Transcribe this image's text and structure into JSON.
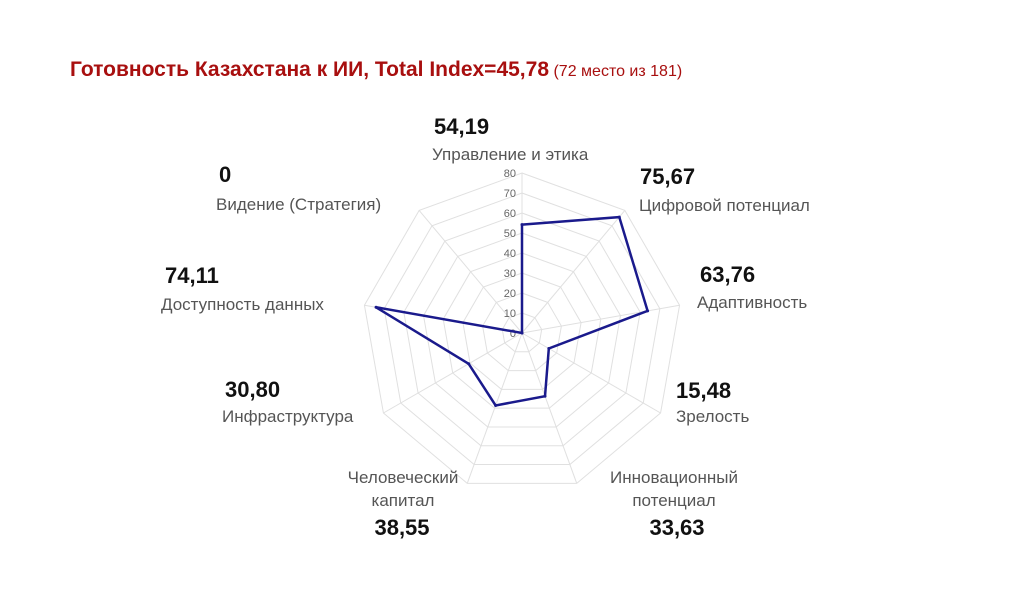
{
  "title": {
    "main": "Готовность Казахстана к ИИ, Total Index=45,78",
    "rank": "(72 место из 181)"
  },
  "colors": {
    "title": "#a80f0f",
    "series": "#1a1a8c",
    "grid": "#e0e0e0"
  },
  "chart_data": {
    "type": "radar",
    "rlim": [
      0,
      80
    ],
    "ticks": [
      0,
      10,
      20,
      30,
      40,
      50,
      60,
      70,
      80
    ],
    "grid": true,
    "categories": [
      {
        "label": "Управление и этика",
        "value_text": "54,19"
      },
      {
        "label": "Цифровой потенциал",
        "value_text": "75,67"
      },
      {
        "label": "Адаптивность",
        "value_text": "63,76"
      },
      {
        "label": "Зрелость",
        "value_text": "15,48"
      },
      {
        "label": "Инновационный потенциал",
        "value_text": "33,63"
      },
      {
        "label": "Человеческий капитал",
        "value_text": "38,55"
      },
      {
        "label": "Инфраструктура",
        "value_text": "30,80"
      },
      {
        "label": "Доступность данных",
        "value_text": "74,11"
      },
      {
        "label": "Видение (Стратегия)",
        "value_text": "0"
      }
    ],
    "values": [
      54.19,
      75.67,
      63.76,
      15.48,
      33.63,
      38.55,
      30.8,
      74.11,
      0
    ]
  }
}
